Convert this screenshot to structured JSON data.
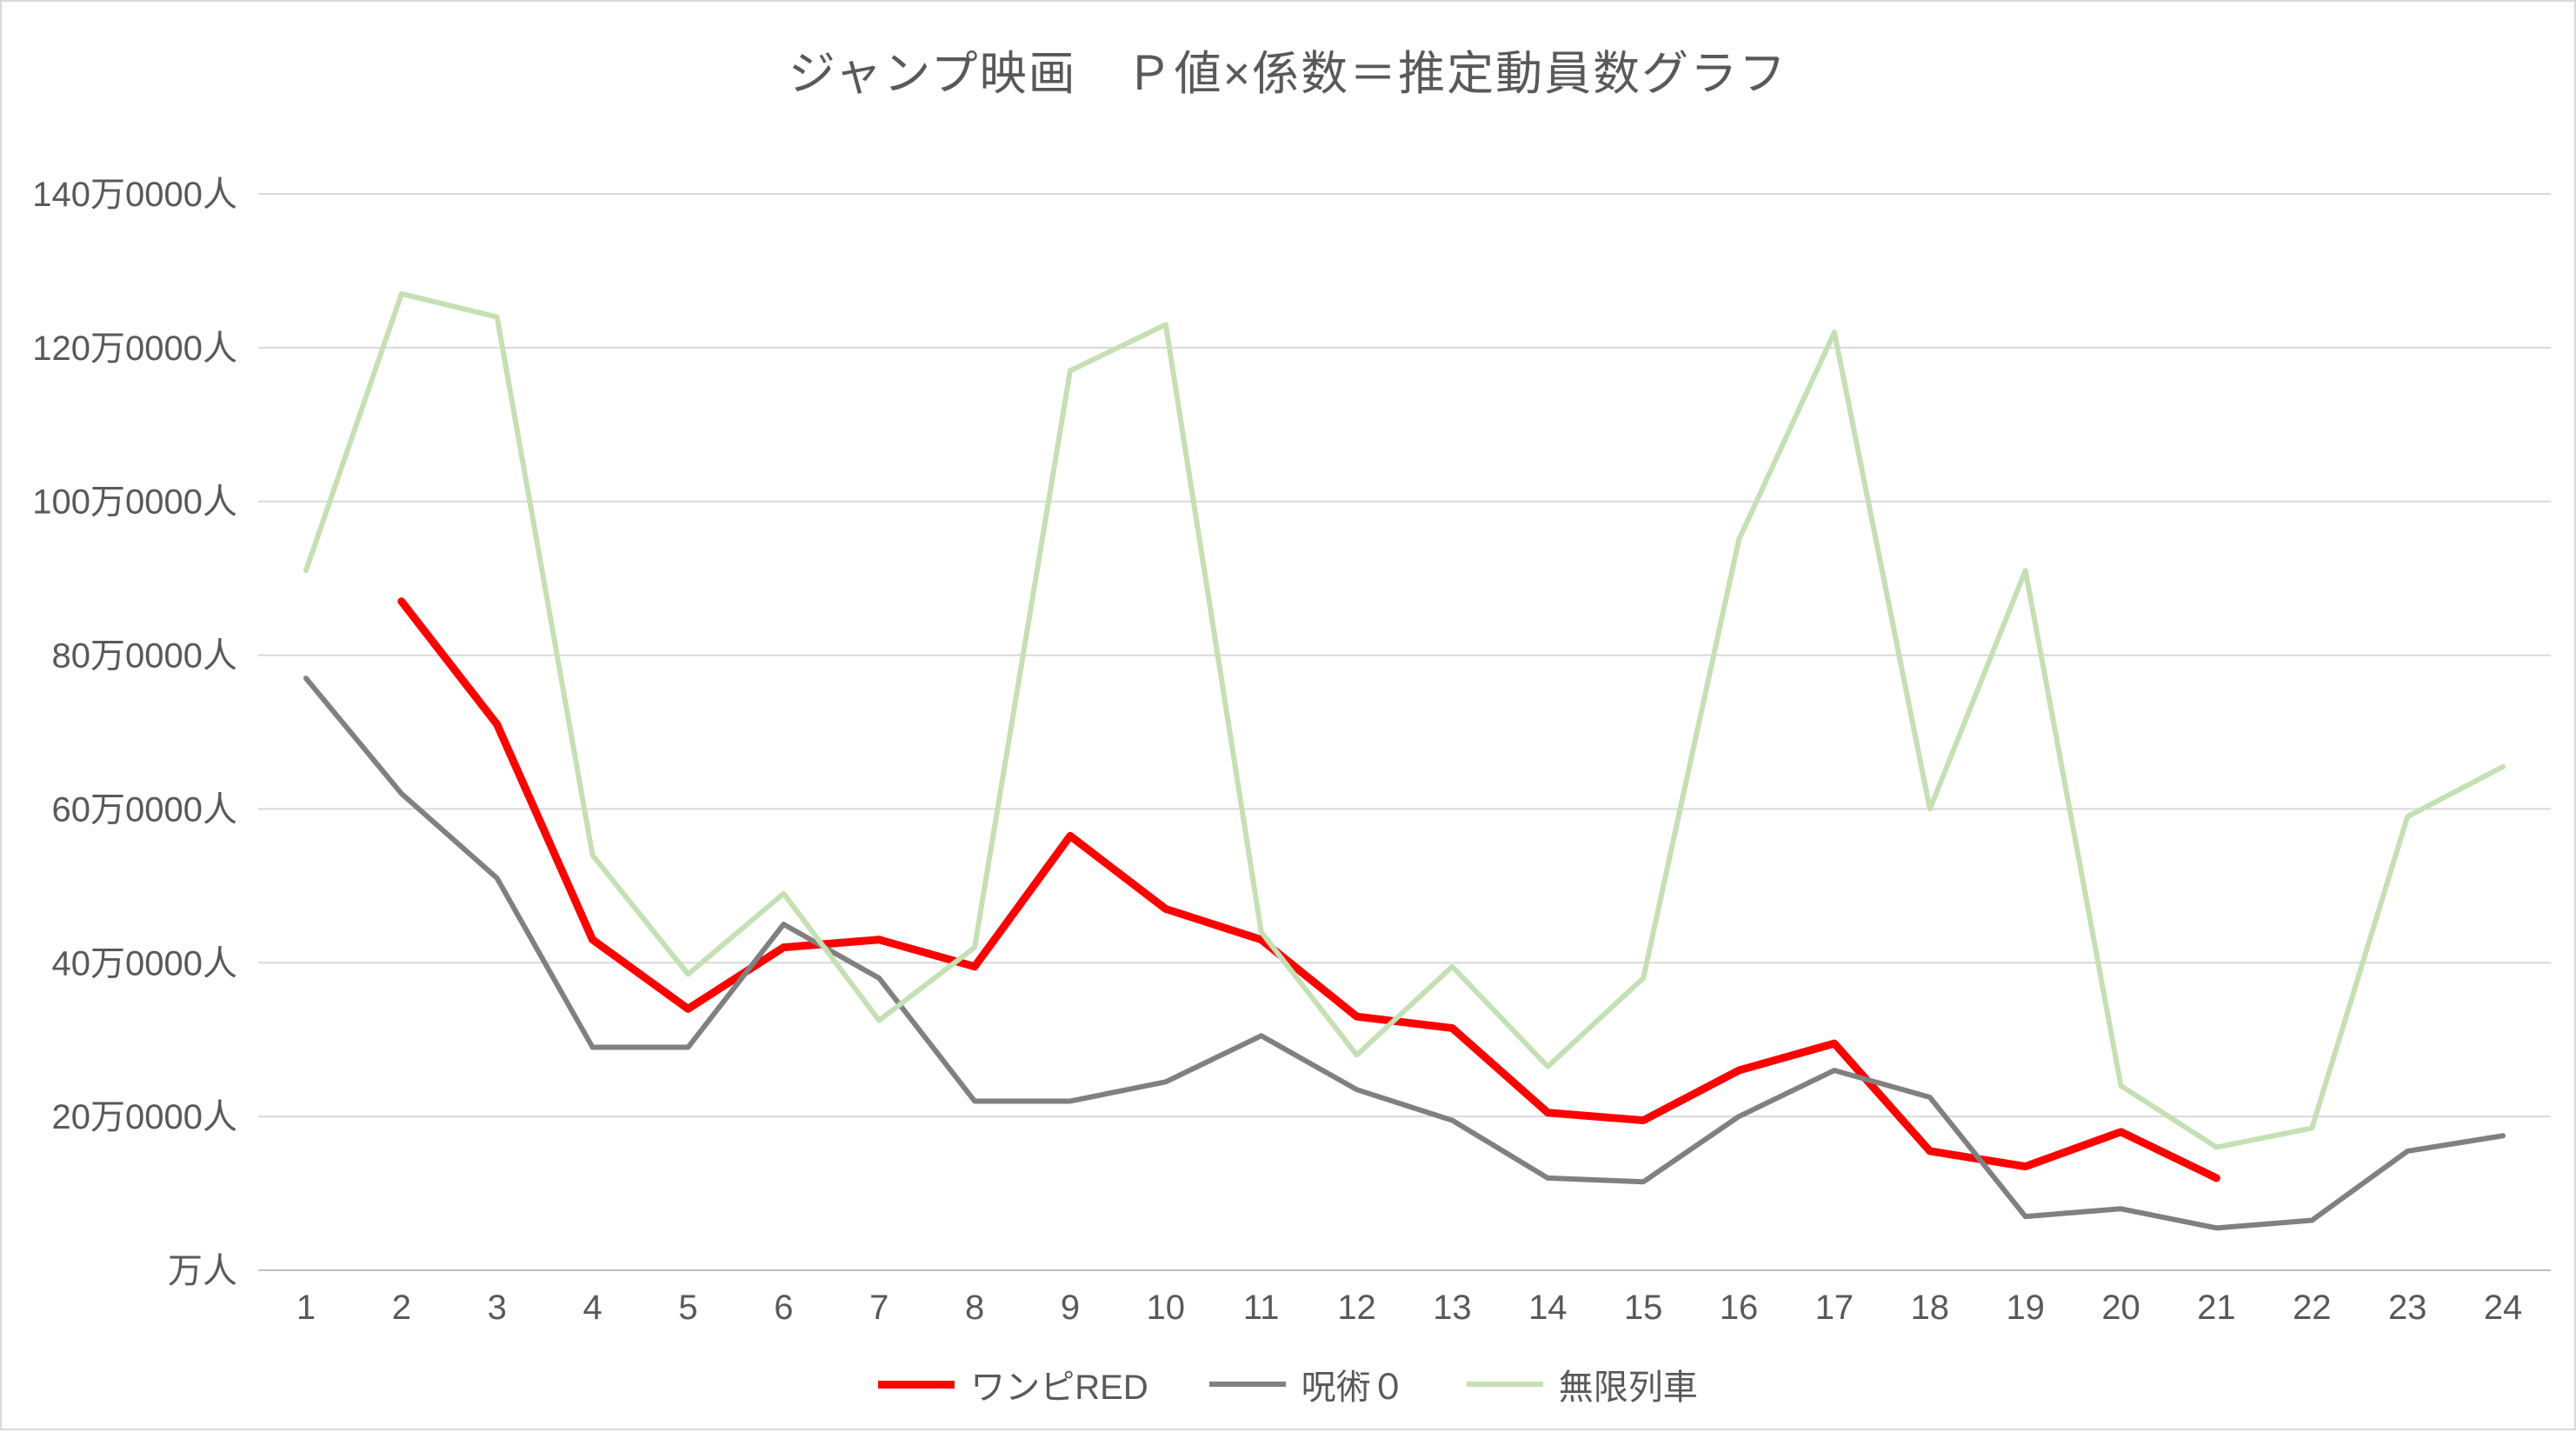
{
  "title": "ジャンプ映画　Ｐ値×係数＝推定動員数グラフ",
  "colors": {
    "text": "#595959",
    "grid": "#d9d9d9",
    "axis": "#bfbfbf",
    "background": "#ffffff"
  },
  "chart_data": {
    "type": "line",
    "title": "ジャンプ映画　Ｐ値×係数＝推定動員数グラフ",
    "xlabel": "",
    "ylabel": "",
    "unit": "万人 (x10000 people)",
    "ylim": [
      0,
      140
    ],
    "grid": true,
    "legend_position": "bottom",
    "x_labels": [
      "1",
      "2",
      "3",
      "4",
      "5",
      "6",
      "7",
      "8",
      "9",
      "10",
      "11",
      "12",
      "13",
      "14",
      "15",
      "16",
      "17",
      "18",
      "19",
      "20",
      "21",
      "22",
      "23",
      "24"
    ],
    "y_ticks": [
      {
        "value": 0,
        "label": "万人"
      },
      {
        "value": 20,
        "label": "20万0000人"
      },
      {
        "value": 40,
        "label": "40万0000人"
      },
      {
        "value": 60,
        "label": "60万0000人"
      },
      {
        "value": 80,
        "label": "80万0000人"
      },
      {
        "value": 100,
        "label": "100万0000人"
      },
      {
        "value": 120,
        "label": "120万0000人"
      },
      {
        "value": 140,
        "label": "140万0000人"
      }
    ],
    "series": [
      {
        "id": "wanpi-red",
        "name": "ワンピRED",
        "color": "#ff0000",
        "width": 9,
        "values": [
          null,
          87,
          71,
          43,
          34,
          42,
          43,
          39.5,
          56.5,
          47,
          43,
          33,
          31.5,
          20.5,
          19.5,
          26,
          29.5,
          15.5,
          13.5,
          18,
          12,
          null,
          null,
          null
        ]
      },
      {
        "id": "jujutsu-0",
        "name": "呪術０",
        "color": "#808080",
        "width": 6,
        "values": [
          77,
          62,
          51,
          29,
          29,
          45,
          38,
          22,
          22,
          24.5,
          30.5,
          23.5,
          19.5,
          12,
          11.5,
          20,
          26,
          22.5,
          7,
          8,
          5.5,
          6.5,
          15.5,
          17.5
        ]
      },
      {
        "id": "mugen-ressha",
        "name": "無限列車",
        "color": "#c5e0b4",
        "width": 6,
        "values": [
          91,
          127,
          124,
          54,
          38.5,
          49,
          32.5,
          42,
          117,
          123,
          44,
          28,
          39.5,
          26.5,
          38,
          95,
          122,
          60,
          91,
          24,
          16,
          18.5,
          59,
          65.5
        ]
      }
    ]
  }
}
